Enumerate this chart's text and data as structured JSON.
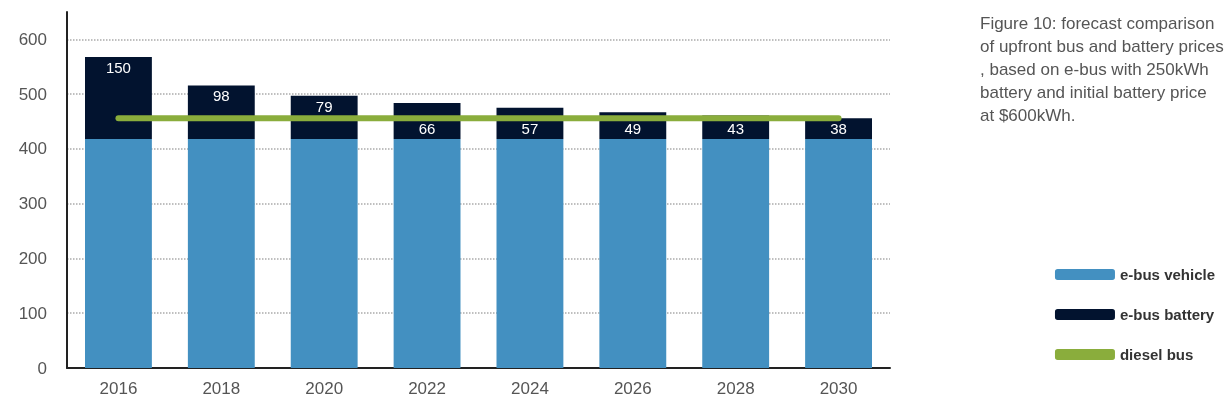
{
  "chart_data": {
    "type": "bar",
    "categories": [
      "2016",
      "2018",
      "2020",
      "2022",
      "2024",
      "2026",
      "2028",
      "2030"
    ],
    "stacked": true,
    "series": [
      {
        "name": "e-bus vehicle",
        "color": "#4390c1",
        "values": [
          418,
          418,
          418,
          418,
          418,
          418,
          418,
          418
        ]
      },
      {
        "name": "e-bus battery",
        "color": "#02132f",
        "values": [
          150,
          98,
          79,
          66,
          57,
          49,
          43,
          38
        ],
        "value_labels": [
          "150",
          "98",
          "79",
          "66",
          "57",
          "49",
          "43",
          "38"
        ]
      },
      {
        "name": "diesel bus",
        "type": "line",
        "color": "#8aad3c",
        "values": [
          456,
          456,
          456,
          456,
          456,
          456,
          456,
          456
        ]
      }
    ],
    "ylim": [
      0,
      650
    ],
    "yticks": [
      0,
      100,
      200,
      300,
      400,
      500,
      600
    ],
    "grid": "y",
    "legend": "right",
    "marker": "none",
    "line_style": "solid",
    "annotations": [
      "Figure 10: forecast comparison of upfront bus and battery prices, based on e-bus with 250kWh battery and initial battery price at $600kWh."
    ]
  }
}
